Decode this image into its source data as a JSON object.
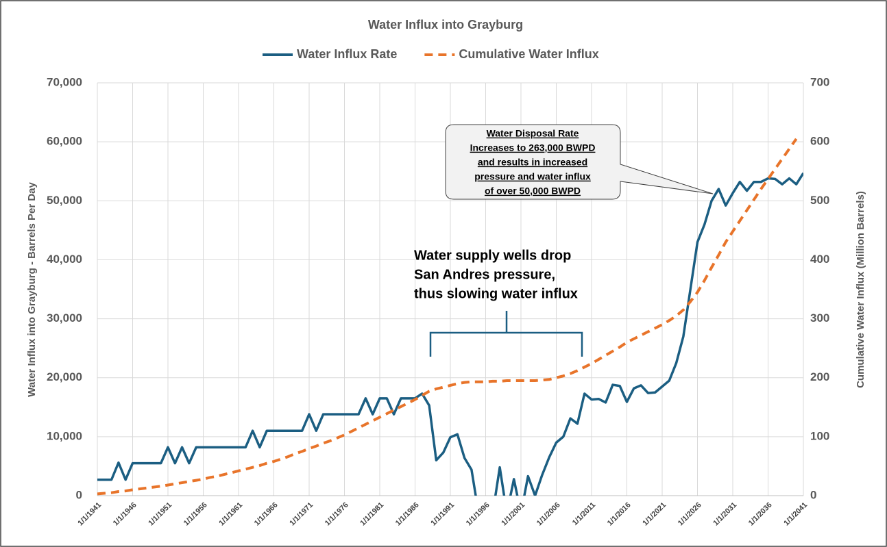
{
  "chart_data": {
    "type": "line",
    "title": "Water Influx into Grayburg",
    "y_label": "Water Influx into Grayburg - Barrels Per Day",
    "y2_label": "Cumulative Water Influx (Million Barrels)",
    "annotations": [
      {
        "lines": [
          "Water Disposal Rate",
          "Increases to 263,000 BWPD",
          "and results in increased",
          "pressure and water influx",
          "of over 50,000 BWPD"
        ]
      },
      {
        "lines": [
          "Water supply wells drop",
          "San Andres pressure,",
          "thus slowing water influx"
        ]
      }
    ],
    "categories": [
      "1/1/1941",
      null,
      null,
      null,
      null,
      "1/1/1946",
      null,
      null,
      null,
      null,
      "1/1/1951",
      null,
      null,
      null,
      null,
      "1/1/1956",
      null,
      null,
      null,
      null,
      "1/1/1961",
      null,
      null,
      null,
      null,
      "1/1/1966",
      null,
      null,
      null,
      null,
      "1/1/1971",
      null,
      null,
      null,
      null,
      "1/1/1976",
      null,
      null,
      null,
      null,
      "1/1/1981",
      null,
      null,
      null,
      null,
      "1/1/1986",
      null,
      null,
      null,
      null,
      "1/1/1991",
      null,
      null,
      null,
      null,
      "1/1/1996",
      null,
      null,
      null,
      null,
      "1/1/2001",
      null,
      null,
      null,
      null,
      "1/1/2006",
      null,
      null,
      null,
      null,
      "1/1/2011",
      null,
      null,
      null,
      null,
      "1/1/2016",
      null,
      null,
      null,
      null,
      "1/1/2021",
      null,
      null,
      null,
      null,
      "1/1/2026",
      null,
      null,
      null,
      null,
      "1/1/2031",
      null,
      null,
      null,
      null,
      "1/1/2036",
      null,
      null,
      null,
      null,
      "1/1/2041"
    ],
    "series": [
      {
        "name": "Water Influx Rate",
        "color": "#1b5e82",
        "dashed": false,
        "values": [
          2700,
          2700,
          2700,
          5600,
          2700,
          5500,
          5500,
          5500,
          5500,
          5500,
          8200,
          5500,
          8200,
          5500,
          8200,
          8200,
          8200,
          8200,
          8200,
          8200,
          8200,
          8200,
          11000,
          8200,
          11000,
          11000,
          11000,
          11000,
          11000,
          11000,
          13800,
          11000,
          13800,
          13800,
          13800,
          13800,
          13800,
          13800,
          16500,
          13800,
          16500,
          16500,
          13800,
          16500,
          16500,
          16500,
          17300,
          15300,
          6000,
          7300,
          9900,
          10400,
          6400,
          4400,
          -3000,
          -3000,
          -3000,
          4800,
          -3000,
          2800,
          -3000,
          3300,
          0,
          3500,
          6500,
          9000,
          10000,
          13100,
          12200,
          17300,
          16300,
          16400,
          15800,
          18800,
          18600,
          15900,
          18200,
          18700,
          17400,
          17500,
          18500,
          19500,
          22500,
          27000,
          35000,
          43000,
          46000,
          50000,
          52000,
          49200,
          51300,
          53200,
          51700,
          53200,
          53200,
          53800,
          53700,
          52800,
          53800,
          52800,
          54700
        ]
      },
      {
        "name": "Cumulative Water Influx",
        "color": "#e8742a",
        "dashed": true,
        "axis": "y2",
        "values": [
          3,
          4,
          5,
          7,
          8,
          10,
          11.5,
          13,
          14.5,
          16,
          18,
          20,
          22,
          24,
          26,
          28,
          31,
          33,
          36,
          39,
          42,
          45,
          48,
          51,
          55,
          58,
          62,
          66,
          71,
          75,
          80,
          84,
          89,
          93,
          98,
          103,
          109,
          115,
          121,
          127,
          133,
          139,
          145,
          151,
          157,
          163,
          170,
          177,
          181,
          184,
          187,
          190,
          192,
          193,
          193,
          193,
          194,
          194,
          195,
          195,
          195,
          195,
          195,
          196,
          197,
          200,
          203,
          207,
          212,
          218,
          224,
          231,
          238,
          245,
          252,
          260,
          266,
          272,
          278,
          284,
          290,
          297,
          305,
          315,
          329,
          345,
          365,
          387,
          408,
          430,
          448,
          466,
          484,
          502,
          520,
          537,
          554,
          571,
          588,
          605,
          null
        ]
      }
    ],
    "ylim": [
      0,
      70000
    ],
    "yticks": [
      0,
      {
        "value": 10000,
        "label": "10,000"
      },
      {
        "value": 20000,
        "label": "20,000"
      },
      {
        "value": 30000,
        "label": "30,000"
      },
      {
        "value": 40000,
        "label": "40,000"
      },
      {
        "value": 50000,
        "label": "50,000"
      },
      {
        "value": 60000,
        "label": "60,000"
      },
      {
        "value": 70000,
        "label": "70,000"
      }
    ],
    "y2lim": [
      0,
      700
    ],
    "y2ticks": [
      0,
      100,
      200,
      300,
      400,
      500,
      600,
      700
    ],
    "grid": true
  }
}
